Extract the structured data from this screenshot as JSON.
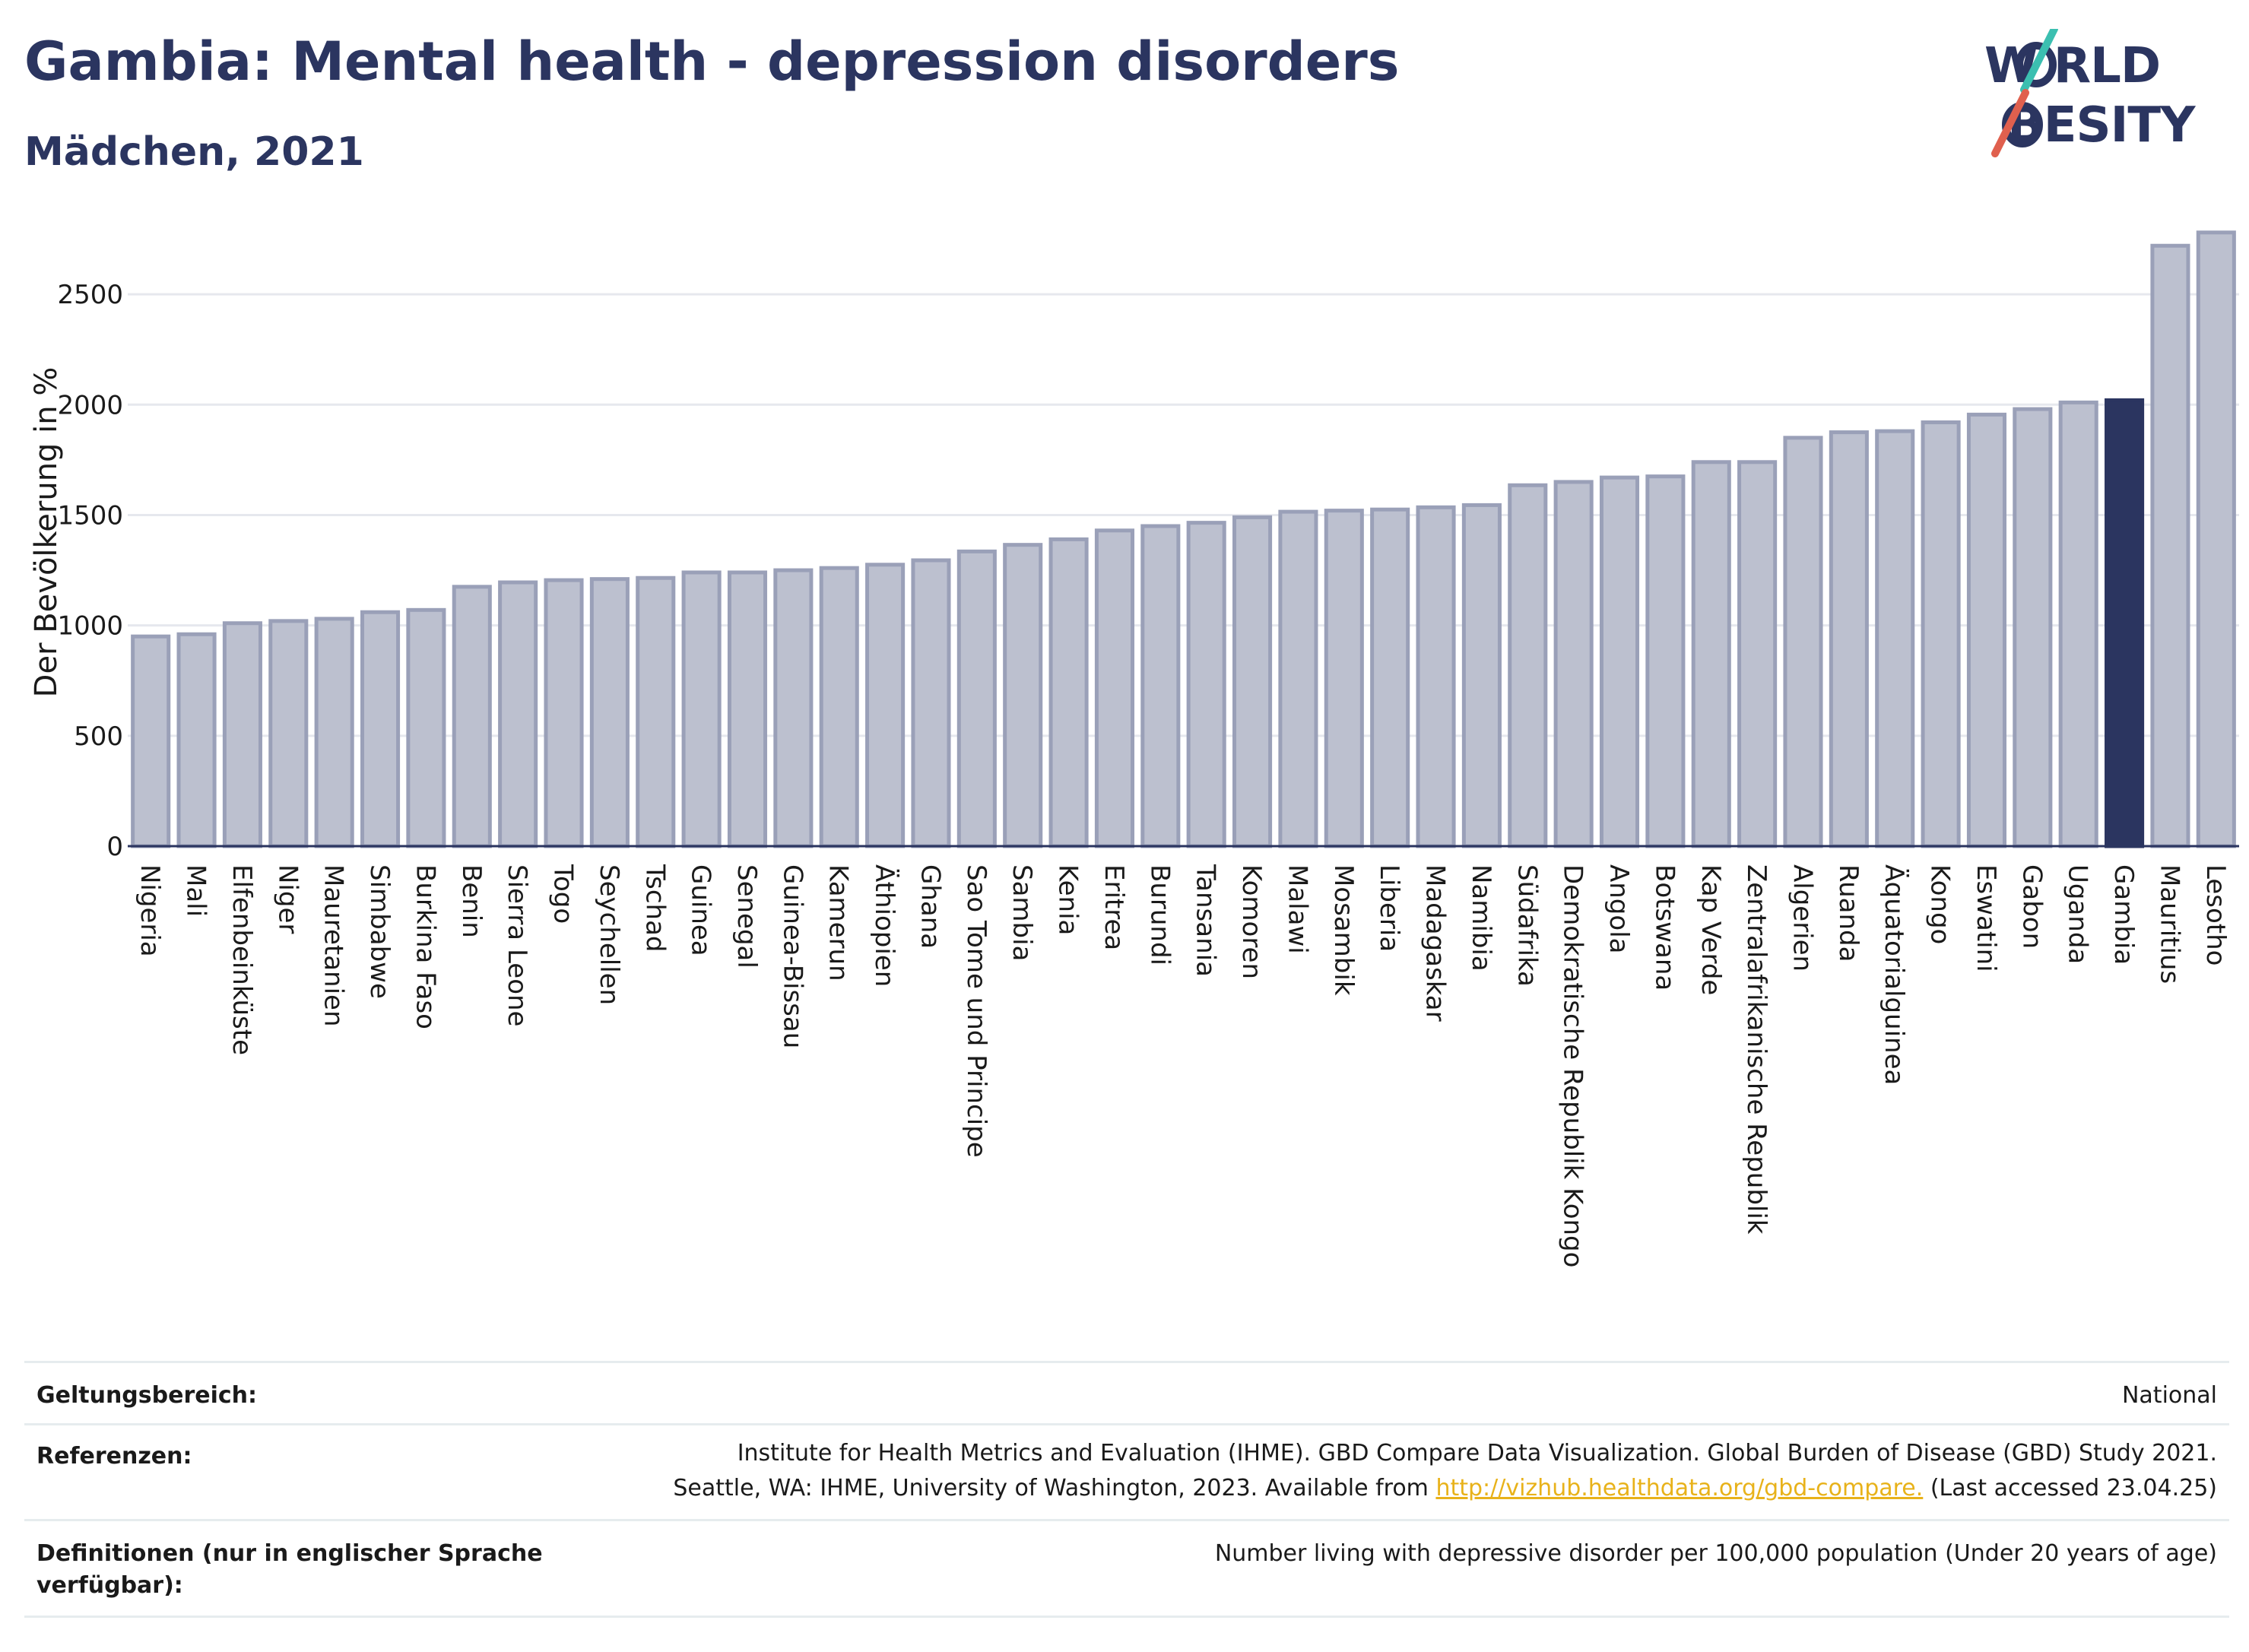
{
  "header": {
    "title": "Gambia: Mental health - depression disorders",
    "subtitle": "Mädchen, 2021"
  },
  "logo": {
    "line1": "W  RLD",
    "line2": "BESITY",
    "colors": {
      "text": "#2b3560",
      "slash_teal": "#3bbfb0",
      "slash_red": "#e0604e"
    }
  },
  "colors": {
    "bar": "#bcc0cf",
    "bar_border": "#9aa0b8",
    "highlight": "#2b3560",
    "grid": "#e6e8ee"
  },
  "chart_data": {
    "type": "bar",
    "ylabel": "Der Bevölkerung in %",
    "ylim": [
      0,
      2800
    ],
    "yticks": [
      0,
      500,
      1000,
      1500,
      2000,
      2500
    ],
    "grid": true,
    "highlight": "Gambia",
    "categories": [
      "Nigeria",
      "Mali",
      "Elfenbeinküste",
      "Niger",
      "Mauretanien",
      "Simbabwe",
      "Burkina Faso",
      "Benin",
      "Sierra Leone",
      "Togo",
      "Seychellen",
      "Tschad",
      "Guinea",
      "Senegal",
      "Guinea-Bissau",
      "Kamerun",
      "Äthiopien",
      "Ghana",
      "Sao Tome und Principe",
      "Sambia",
      "Kenia",
      "Eritrea",
      "Burundi",
      "Tansania",
      "Komoren",
      "Malawi",
      "Mosambik",
      "Liberia",
      "Madagaskar",
      "Namibia",
      "Südafrika",
      "Demokratische Republik Kongo",
      "Angola",
      "Botswana",
      "Kap Verde",
      "Zentralafrikanische Republik",
      "Algerien",
      "Ruanda",
      "Äquatorialguinea",
      "Kongo",
      "Eswatini",
      "Gabon",
      "Uganda",
      "Gambia",
      "Mauritius",
      "Lesotho"
    ],
    "values": [
      950,
      960,
      1010,
      1020,
      1030,
      1060,
      1070,
      1175,
      1195,
      1205,
      1210,
      1215,
      1240,
      1240,
      1250,
      1260,
      1275,
      1295,
      1335,
      1365,
      1390,
      1430,
      1450,
      1465,
      1490,
      1515,
      1520,
      1525,
      1535,
      1545,
      1635,
      1650,
      1670,
      1675,
      1740,
      1740,
      1850,
      1875,
      1880,
      1920,
      1955,
      1980,
      2010,
      2020,
      2720,
      2780
    ]
  },
  "footer": {
    "scope_label": "Geltungsbereich:",
    "scope_value": "National",
    "refs_label": "Referenzen:",
    "refs_line1": "Institute for Health Metrics and Evaluation (IHME). GBD Compare Data Visualization. Global Burden of Disease (GBD) Study 2021.",
    "refs_line2_pre": "Seattle, WA: IHME, University of Washington, 2023. Available from ",
    "refs_link": "http://vizhub.healthdata.org/gbd-compare.",
    "refs_line2_post": " (Last accessed 23.04.25)",
    "defs_label": "Definitionen (nur in englischer Sprache verfügbar):",
    "defs_value": "Number living with depressive disorder per 100,000 population (Under 20 years of age)"
  }
}
